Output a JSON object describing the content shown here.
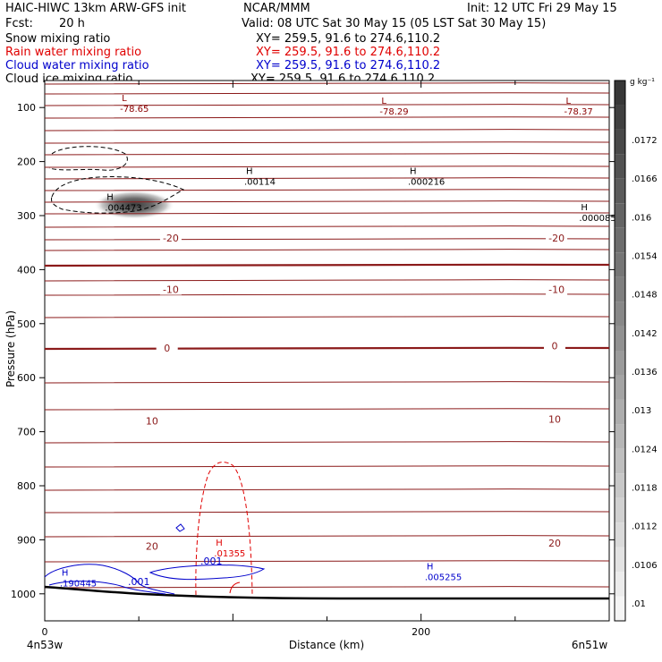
{
  "header": {
    "title": "HAIC-HIWC 13km ARW-GFS init",
    "org": "NCAR/MMM",
    "init": "Init: 12 UTC Fri 29 May 15",
    "fcst_label": "Fcst:",
    "fcst_value": "20 h",
    "valid": "Valid: 08 UTC Sat 30 May 15 (05 LST Sat 30 May 15)"
  },
  "fields": [
    {
      "name": "Snow mixing ratio",
      "xy": "XY= 259.5, 91.6 to 274.6,110.2",
      "color": "#000000"
    },
    {
      "name": "Rain water mixing ratio",
      "xy": "XY= 259.5, 91.6 to 274.6,110.2",
      "color": "#e00000"
    },
    {
      "name": "Cloud water mixing ratio",
      "xy": "XY= 259.5, 91.6 to 274.6,110.2",
      "color": "#0000cc"
    },
    {
      "name": "Cloud ice mixing ratio",
      "xy": "XY= 259.5, 91.6 to 274.6,110.2",
      "color": "#000000"
    }
  ],
  "chart_data": {
    "type": "contour",
    "xlabel": "Distance (km)",
    "ylabel": "Pressure (hPa)",
    "xlim": [
      0,
      300
    ],
    "ylim": [
      1050,
      50
    ],
    "x_ticks": [
      "0",
      "200"
    ],
    "y_ticks": [
      100,
      200,
      300,
      400,
      500,
      600,
      700,
      800,
      900,
      1000
    ],
    "left_endpoint": "4n53w",
    "right_endpoint": "6n51w",
    "colorbar": {
      "unit": "g kg⁻¹",
      "labels": [
        ".0172",
        ".0166",
        ".016",
        ".0154",
        ".0148",
        ".0142",
        ".0136",
        ".013",
        ".0124",
        ".0118",
        ".0112",
        ".0106",
        ".01"
      ]
    },
    "temperature_labels": [
      {
        "text": "-20",
        "x": 67,
        "p": 345
      },
      {
        "text": "-20",
        "x": 272,
        "p": 345
      },
      {
        "text": "-10",
        "x": 67,
        "p": 440
      },
      {
        "text": "-10",
        "x": 272,
        "p": 440
      },
      {
        "text": "0",
        "x": 65,
        "p": 548
      },
      {
        "text": "0",
        "x": 271,
        "p": 544
      },
      {
        "text": "10",
        "x": 57,
        "p": 683
      },
      {
        "text": "10",
        "x": 271,
        "p": 680
      },
      {
        "text": "20",
        "x": 57,
        "p": 915
      },
      {
        "text": "20",
        "x": 271,
        "p": 909
      }
    ],
    "extrema": [
      {
        "kind": "L",
        "value": "-78.65",
        "x": 40,
        "p": 103,
        "color": "#8b0000"
      },
      {
        "kind": "L",
        "value": "-78.29",
        "x": 178,
        "p": 108,
        "color": "#8b0000"
      },
      {
        "kind": "L",
        "value": "-78.37",
        "x": 276,
        "p": 108,
        "color": "#8b0000"
      },
      {
        "kind": "H",
        "value": ".00114",
        "x": 106,
        "p": 238,
        "color": "#000000"
      },
      {
        "kind": "H",
        "value": ".000216",
        "x": 193,
        "p": 238,
        "color": "#000000"
      },
      {
        "kind": "H",
        "value": ".004473",
        "x": 32,
        "p": 286,
        "color": "#000000"
      },
      {
        "kind": "H",
        "value": ".000085",
        "x": 284,
        "p": 305,
        "color": "#000000"
      },
      {
        "kind": "H",
        "value": ".01355",
        "x": 90,
        "p": 926,
        "color": "#e00000"
      },
      {
        "kind": "H",
        "value": ".190445",
        "x": 8,
        "p": 981,
        "color": "#0000cc"
      },
      {
        "kind": "H",
        "value": ".005255",
        "x": 202,
        "p": 970,
        "color": "#0000cc"
      }
    ],
    "cloud_water_labels": [
      ".001",
      ".001"
    ]
  }
}
